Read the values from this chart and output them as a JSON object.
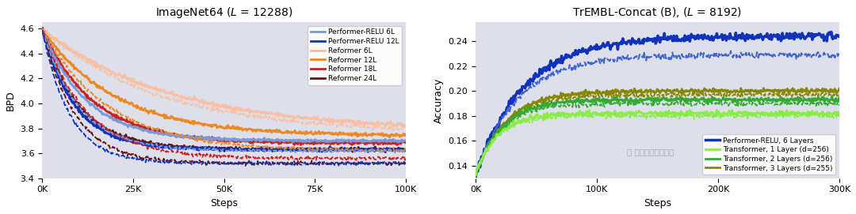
{
  "left_title": "ImageNet64 ($\\mathit{L}$ = 12288)",
  "right_title": "TrEMBL-Concat (B), ($\\mathit{L}$ = 8192)",
  "left_xlabel": "Steps",
  "right_xlabel": "Steps",
  "left_ylabel": "BPD",
  "right_ylabel": "Accuracy",
  "left_xlim": [
    0,
    100000
  ],
  "left_ylim": [
    3.4,
    4.65
  ],
  "right_xlim": [
    0,
    300000
  ],
  "right_ylim": [
    0.13,
    0.255
  ],
  "left_bg": "#dde0ea",
  "right_bg": "#dde0ea",
  "fig_bg": "#ffffff",
  "left_xticks": [
    0,
    25000,
    50000,
    75000,
    100000
  ],
  "left_xticklabels": [
    "0K",
    "25K",
    "50K",
    "75K",
    "100K"
  ],
  "left_yticks": [
    3.4,
    3.6,
    3.8,
    4.0,
    4.2,
    4.4,
    4.6
  ],
  "right_xticks": [
    0,
    100000,
    200000,
    300000
  ],
  "right_xticklabels": [
    "0K",
    "100K",
    "200K",
    "300K"
  ],
  "right_yticks": [
    0.14,
    0.16,
    0.18,
    0.2,
    0.22,
    0.24
  ],
  "left_legend": [
    {
      "label": "Performer-RELU 6L",
      "color": "#7799dd",
      "lw": 2.0
    },
    {
      "label": "Performer-RELU 12L",
      "color": "#1133bb",
      "lw": 2.0
    },
    {
      "label": "Reformer 6L",
      "color": "#ffbb99",
      "lw": 2.0
    },
    {
      "label": "Reformer 12L",
      "color": "#ee8822",
      "lw": 2.0
    },
    {
      "label": "Reformer 18L",
      "color": "#cc2222",
      "lw": 2.0
    },
    {
      "label": "Reformer 24L",
      "color": "#661111",
      "lw": 2.0
    }
  ],
  "right_legend": [
    {
      "label": "Performer-RELU, 6 Layers",
      "color": "#1133bb",
      "lw": 2.5
    },
    {
      "label": "Transformer, 1 Layer (d=256)",
      "color": "#88ee44",
      "lw": 2.0
    },
    {
      "label": "Transformer, 2 Layers (d=256)",
      "color": "#33aa33",
      "lw": 2.0
    },
    {
      "label": "Transformer, 3 Layers (d=255)",
      "color": "#888800",
      "lw": 2.0
    }
  ]
}
